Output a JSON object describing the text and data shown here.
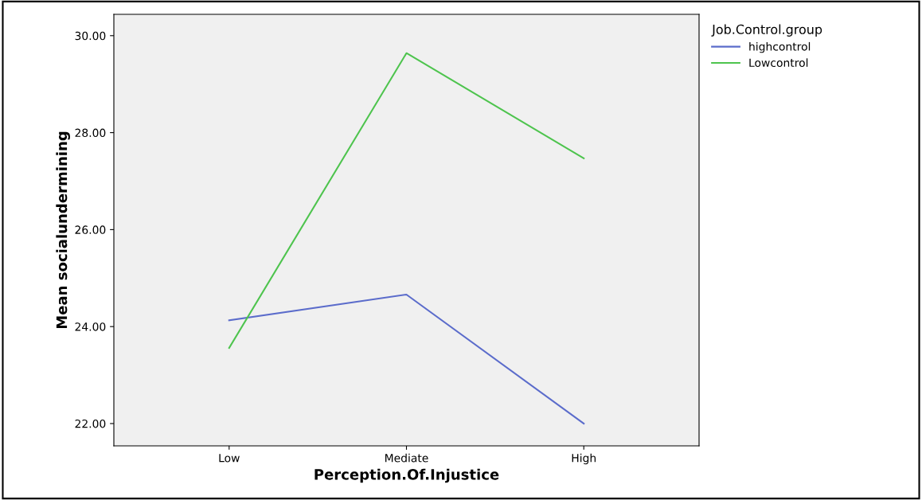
{
  "chart_data": {
    "type": "line",
    "xlabel": "Perception.Of.Injustice",
    "ylabel": "Mean socialundermining",
    "legend_title": "Job.Control.group",
    "legend": "top right",
    "categories": [
      "Low",
      "Mediate",
      "High"
    ],
    "series": [
      {
        "name": "highcontrol",
        "color": "#5b6ccb",
        "values": [
          24.13,
          24.66,
          22.0
        ]
      },
      {
        "name": "Lowcontrol",
        "color": "#4ec44e",
        "values": [
          23.56,
          29.64,
          27.47
        ]
      }
    ],
    "ylim": [
      21.54,
      30.44
    ],
    "yticks": [
      {
        "value": 22,
        "label": "22.00"
      },
      {
        "value": 24,
        "label": "24.00"
      },
      {
        "value": 26,
        "label": "26.00"
      },
      {
        "value": 28,
        "label": "28.00"
      },
      {
        "value": 30,
        "label": "30.00"
      }
    ],
    "grid": false,
    "marker": "none",
    "line_style": "solid"
  }
}
